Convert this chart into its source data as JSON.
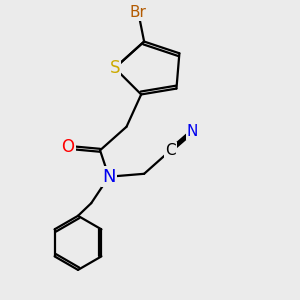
{
  "background_color": "#ebebeb",
  "atom_colors": {
    "Br": "#b35a00",
    "S": "#ccaa00",
    "O": "#ff0000",
    "N": "#0000ee",
    "C": "#000000"
  },
  "bond_color": "#000000",
  "bond_width": 1.6,
  "figsize": [
    3.0,
    3.0
  ],
  "dpi": 100
}
